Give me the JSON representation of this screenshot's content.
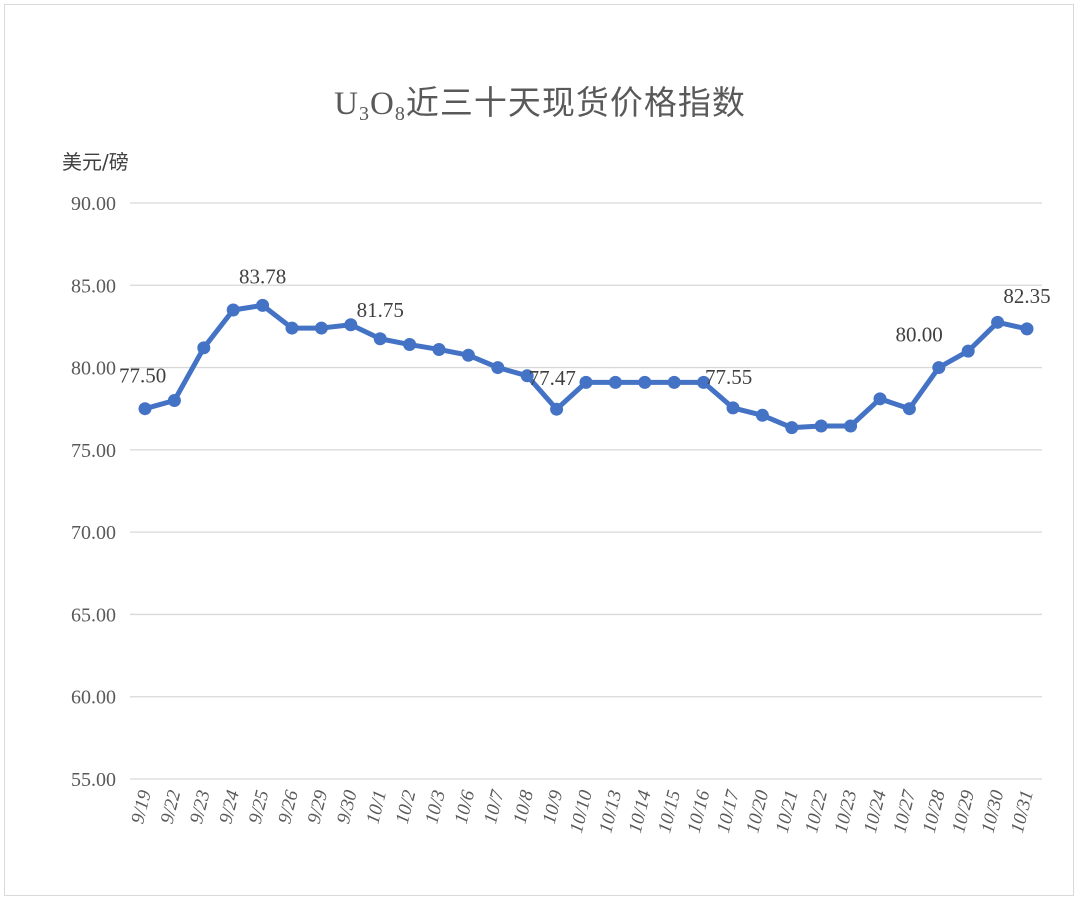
{
  "chart_data": {
    "type": "line",
    "title_main": "U",
    "title_sub1": "3",
    "title_mid": "O",
    "title_sub2": "8",
    "title_rest": "近三十天现货价格指数",
    "ylabel": "美元/磅",
    "ylim": [
      55,
      90
    ],
    "yticks": [
      "55.00",
      "60.00",
      "65.00",
      "70.00",
      "75.00",
      "80.00",
      "85.00",
      "90.00"
    ],
    "grid": true,
    "categories": [
      "9/19",
      "9/22",
      "9/23",
      "9/24",
      "9/25",
      "9/26",
      "9/29",
      "9/30",
      "10/1",
      "10/2",
      "10/3",
      "10/6",
      "10/7",
      "10/8",
      "10/9",
      "10/10",
      "10/13",
      "10/14",
      "10/15",
      "10/16",
      "10/17",
      "10/20",
      "10/21",
      "10/22",
      "10/23",
      "10/24",
      "10/27",
      "10/28",
      "10/29",
      "10/30",
      "10/31"
    ],
    "series": [
      {
        "values": [
          77.5,
          78.0,
          81.2,
          83.5,
          83.78,
          82.4,
          82.4,
          82.6,
          81.75,
          81.4,
          81.1,
          80.75,
          80.0,
          79.5,
          77.47,
          79.1,
          79.1,
          79.1,
          79.1,
          79.1,
          77.55,
          77.1,
          76.35,
          76.45,
          76.45,
          78.1,
          77.5,
          80.0,
          81.0,
          82.75,
          82.35
        ],
        "color": "#4472c4"
      }
    ],
    "data_labels": [
      {
        "index": 0,
        "text": "77.50"
      },
      {
        "index": 4,
        "text": "83.78"
      },
      {
        "index": 8,
        "text": "81.75"
      },
      {
        "index": 14,
        "text": "77.47"
      },
      {
        "index": 20,
        "text": "77.55"
      },
      {
        "index": 27,
        "text": "80.00"
      },
      {
        "index": 30,
        "text": "82.35"
      }
    ]
  }
}
